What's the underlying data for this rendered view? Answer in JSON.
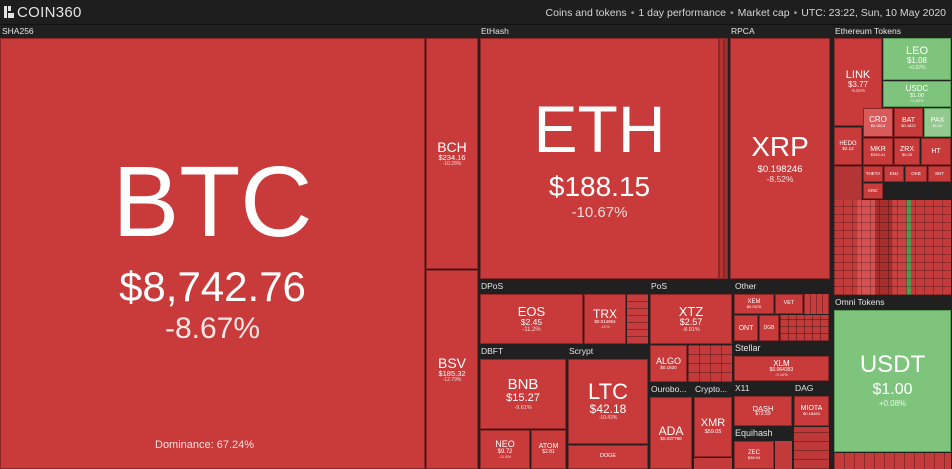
{
  "app": {
    "logo": "COIN360"
  },
  "header": {
    "nav": [
      "Coins and tokens",
      "1 day performance",
      "Market cap"
    ],
    "datetime": "UTC: 23:22, Sun, 10 May 2020"
  },
  "colors": {
    "loss": "#c93a3a",
    "gain": "#7ec47c",
    "background": "#1b1b1b"
  },
  "sections": {
    "sha256": "SHA256",
    "ethash": "EtHash",
    "rpca": "RPCA",
    "ethereum_tokens": "Ethereum Tokens",
    "dpos": "DPoS",
    "pos": "PoS",
    "other": "Other",
    "dbft": "DBFT",
    "scrypt": "Scrypt",
    "stellar": "Stellar",
    "omni_tokens": "Omni Tokens",
    "ouroboros": "Ourobo...",
    "crypto": "Crypto...",
    "x11": "X11",
    "dag": "DAG",
    "equihash": "Equihash"
  },
  "coins": {
    "btc": {
      "sym": "BTC",
      "price": "$8,742.76",
      "chg": "-8.67%",
      "dominance": "Dominance: 67.24%"
    },
    "bch": {
      "sym": "BCH",
      "price": "$234.16",
      "chg": "-10.28%"
    },
    "bsv": {
      "sym": "BSV",
      "price": "$185.32",
      "chg": "-12.79%"
    },
    "eth": {
      "sym": "ETH",
      "price": "$188.15",
      "chg": "-10.67%"
    },
    "xrp": {
      "sym": "XRP",
      "price": "$0.198246",
      "chg": "-8.52%"
    },
    "link": {
      "sym": "LINK",
      "price": "$3.77",
      "chg": "-6.91%"
    },
    "leo": {
      "sym": "LEO",
      "price": "$1.08",
      "chg": "+0.82%"
    },
    "usdc": {
      "sym": "USDC",
      "price": "$1.00",
      "chg": "+0.52%"
    },
    "hedg": {
      "sym": "HEDG",
      "price": "$2.12",
      "chg": ""
    },
    "cro": {
      "sym": "CRO",
      "price": "$0.0614",
      "chg": ""
    },
    "bat": {
      "sym": "BAT",
      "price": "$0.1822",
      "chg": ""
    },
    "pax": {
      "sym": "PAX",
      "price": "$1.00",
      "chg": ""
    },
    "mkr": {
      "sym": "MKR",
      "price": "$330.41",
      "chg": ""
    },
    "zrx": {
      "sym": "ZRX",
      "price": "$0.25",
      "chg": ""
    },
    "ht": {
      "sym": "HT",
      "price": "",
      "chg": ""
    },
    "eos": {
      "sym": "EOS",
      "price": "$2.45",
      "chg": "-11.2%"
    },
    "trx": {
      "sym": "TRX",
      "price": "$0.014964",
      "chg": "-11%"
    },
    "xtz": {
      "sym": "XTZ",
      "price": "$2.57",
      "chg": "-8.91%"
    },
    "algo": {
      "sym": "ALGO",
      "price": "$0.1920",
      "chg": ""
    },
    "xem": {
      "sym": "XEM",
      "price": "$0.0376",
      "chg": ""
    },
    "vet": {
      "sym": "VET",
      "price": "",
      "chg": ""
    },
    "ont": {
      "sym": "ONT",
      "price": "",
      "chg": ""
    },
    "dgb": {
      "sym": "DGB",
      "price": "",
      "chg": ""
    },
    "xlm": {
      "sym": "XLM",
      "price": "$0.064353",
      "chg": "-9.10%"
    },
    "bnb": {
      "sym": "BNB",
      "price": "$15.27",
      "chg": "-9.61%"
    },
    "neo": {
      "sym": "NEO",
      "price": "$9.72",
      "chg": "-11.8%"
    },
    "atom": {
      "sym": "ATOM",
      "price": "$2.81",
      "chg": ""
    },
    "ltc": {
      "sym": "LTC",
      "price": "$42.18",
      "chg": "-10.43%"
    },
    "doge": {
      "sym": "DOGE",
      "price": "",
      "chg": ""
    },
    "ada": {
      "sym": "ADA",
      "price": "$0.037798",
      "chg": ""
    },
    "xmr": {
      "sym": "XMR",
      "price": "$59.05",
      "chg": ""
    },
    "dash": {
      "sym": "DASH",
      "price": "$72.59",
      "chg": ""
    },
    "miota": {
      "sym": "MIOTA",
      "price": "$0.18483",
      "chg": ""
    },
    "zec": {
      "sym": "ZEC",
      "price": "$38.94",
      "chg": ""
    },
    "usdt": {
      "sym": "USDT",
      "price": "$1.00",
      "chg": "+0.08%"
    }
  },
  "eth_mini": [
    {
      "sym": "THETA"
    },
    {
      "sym": "ENJ"
    },
    {
      "sym": "OKB"
    },
    {
      "sym": "SNT"
    },
    {
      "sym": "KNC"
    }
  ]
}
